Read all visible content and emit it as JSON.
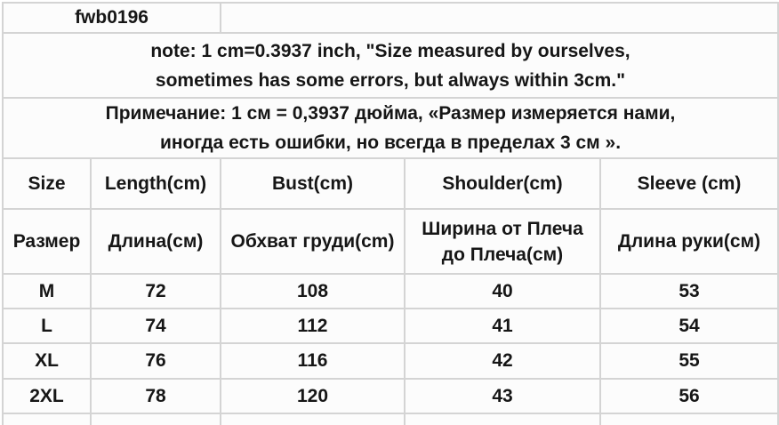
{
  "page": {
    "background": "#ffffff",
    "grid_line_color": "#d4d4d4",
    "cell_background": "#fcfcfc",
    "text_color": "#161616"
  },
  "size_chart": {
    "model_code": "fwb0196",
    "note_en": {
      "line1": "note: 1 cm=0.3937 inch, \"Size measured by ourselves,",
      "line2": "sometimes has some errors, but always within 3cm.\""
    },
    "note_ru": {
      "line1": "Примечание: 1 см = 0,3937 дюйма, «Размер измеряется нами,",
      "line2": "иногда есть ошибки, но всегда в пределах 3 см »."
    },
    "headers_en": {
      "size": "Size",
      "length": "Length(cm)",
      "bust": "Bust(cm)",
      "shoulder": "Shoulder(cm)",
      "sleeve": "Sleeve (cm)"
    },
    "headers_ru": {
      "size": "Размер",
      "length": "Длина(см)",
      "bust": "Обхват груди(cm)",
      "shoulder_line1": "Ширина от Плеча",
      "shoulder_line2": "до Плеча(см)",
      "sleeve": "Длина руки(см)"
    },
    "rows": [
      {
        "size": "M",
        "length": "72",
        "bust": "108",
        "shoulder": "40",
        "sleeve": "53"
      },
      {
        "size": "L",
        "length": "74",
        "bust": "112",
        "shoulder": "41",
        "sleeve": "54"
      },
      {
        "size": "XL",
        "length": "76",
        "bust": "116",
        "shoulder": "42",
        "sleeve": "55"
      },
      {
        "size": "2XL",
        "length": "78",
        "bust": "120",
        "shoulder": "43",
        "sleeve": "56"
      }
    ]
  },
  "chart_data": {
    "type": "table",
    "title": "fwb0196 size chart",
    "columns": [
      "Size",
      "Length(cm)",
      "Bust(cm)",
      "Shoulder(cm)",
      "Sleeve (cm)"
    ],
    "rows": [
      [
        "M",
        72,
        108,
        40,
        53
      ],
      [
        "L",
        74,
        112,
        41,
        54
      ],
      [
        "XL",
        76,
        116,
        42,
        55
      ],
      [
        "2XL",
        78,
        120,
        43,
        56
      ]
    ]
  }
}
